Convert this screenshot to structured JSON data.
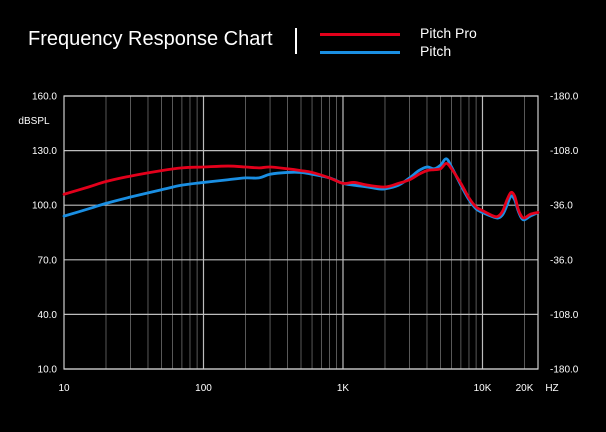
{
  "title": "Frequency Response Chart",
  "legend": [
    {
      "name": "Pitch Pro",
      "color": "#e3001b"
    },
    {
      "name": "Pitch",
      "color": "#1a8fe3"
    }
  ],
  "chart_data": {
    "type": "line",
    "title": "Frequency Response Chart",
    "ylabel": "dBSPL",
    "x_scale": "log",
    "xlim": [
      10,
      25000
    ],
    "ylim": [
      10,
      160
    ],
    "y_ticks": [
      "160.0",
      "130.0",
      "100.0",
      "70.0",
      "40.0",
      "10.0"
    ],
    "y_tick_values": [
      160,
      130,
      100,
      70,
      40,
      10
    ],
    "y2_ticks": [
      "-180.0",
      "-108.0",
      "-36.0",
      "-36.0",
      "-108.0",
      "-180.0"
    ],
    "x_ticks": [
      "10",
      "100",
      "1K",
      "10K",
      "20K"
    ],
    "x_tick_values": [
      10,
      100,
      1000,
      10000,
      20000
    ],
    "x_unit": "HZ",
    "grid": true,
    "legend_position": "top-right",
    "series": [
      {
        "name": "Pitch Pro",
        "color": "#e3001b",
        "points": [
          [
            10,
            106
          ],
          [
            15,
            110
          ],
          [
            20,
            113
          ],
          [
            30,
            116
          ],
          [
            50,
            119
          ],
          [
            70,
            120.5
          ],
          [
            100,
            121
          ],
          [
            150,
            121.5
          ],
          [
            200,
            121
          ],
          [
            250,
            120.5
          ],
          [
            300,
            121
          ],
          [
            400,
            120
          ],
          [
            500,
            119
          ],
          [
            600,
            118
          ],
          [
            800,
            115
          ],
          [
            1000,
            112
          ],
          [
            1200,
            112.5
          ],
          [
            1500,
            111
          ],
          [
            2000,
            110
          ],
          [
            2500,
            112
          ],
          [
            3000,
            114
          ],
          [
            3500,
            117
          ],
          [
            4000,
            119
          ],
          [
            4500,
            119.5
          ],
          [
            5000,
            120
          ],
          [
            5500,
            123
          ],
          [
            6000,
            120
          ],
          [
            7000,
            112
          ],
          [
            8000,
            104
          ],
          [
            9000,
            99
          ],
          [
            10000,
            97
          ],
          [
            12000,
            94
          ],
          [
            13000,
            94
          ],
          [
            14000,
            97
          ],
          [
            15000,
            103
          ],
          [
            16000,
            107
          ],
          [
            17000,
            105
          ],
          [
            18000,
            98
          ],
          [
            19000,
            94
          ],
          [
            20000,
            93
          ],
          [
            22000,
            95
          ],
          [
            25000,
            96
          ]
        ]
      },
      {
        "name": "Pitch",
        "color": "#1a8fe3",
        "points": [
          [
            10,
            94
          ],
          [
            15,
            98
          ],
          [
            20,
            101
          ],
          [
            30,
            104.5
          ],
          [
            50,
            108.5
          ],
          [
            70,
            111
          ],
          [
            100,
            112.5
          ],
          [
            150,
            114
          ],
          [
            200,
            115
          ],
          [
            250,
            115
          ],
          [
            300,
            117
          ],
          [
            400,
            118
          ],
          [
            500,
            118
          ],
          [
            600,
            117
          ],
          [
            800,
            115
          ],
          [
            1000,
            112
          ],
          [
            1200,
            111
          ],
          [
            1500,
            110
          ],
          [
            1800,
            109
          ],
          [
            2000,
            109
          ],
          [
            2500,
            111
          ],
          [
            3000,
            115
          ],
          [
            3500,
            119
          ],
          [
            4000,
            121
          ],
          [
            4500,
            120
          ],
          [
            5000,
            122
          ],
          [
            5500,
            125.5
          ],
          [
            6000,
            121
          ],
          [
            7000,
            111
          ],
          [
            8000,
            103
          ],
          [
            9000,
            98
          ],
          [
            10000,
            96
          ],
          [
            12000,
            93.5
          ],
          [
            13000,
            93
          ],
          [
            14000,
            95
          ],
          [
            15000,
            100
          ],
          [
            16000,
            105
          ],
          [
            17000,
            103
          ],
          [
            18000,
            97
          ],
          [
            19000,
            93
          ],
          [
            20000,
            92
          ],
          [
            22000,
            94
          ],
          [
            25000,
            96
          ]
        ]
      }
    ]
  }
}
